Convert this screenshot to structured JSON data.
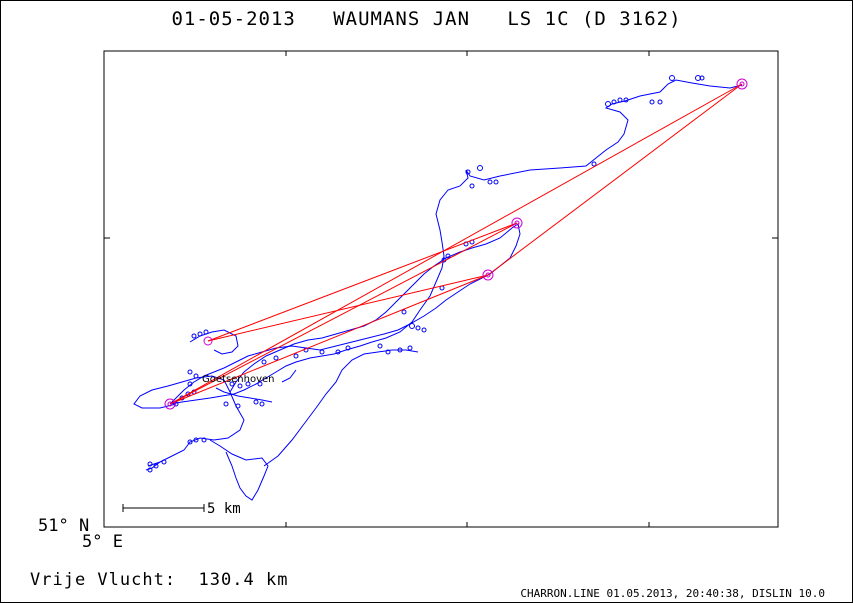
{
  "title": {
    "date": "01-05-2013",
    "owner": "WAUMANS JAN",
    "loft": "LS 1C (D 3162)"
  },
  "axes": {
    "lat_label": "51° N",
    "lon_label": "5° E"
  },
  "map": {
    "place_name": "Goetsenhoven",
    "scale_bar_label": "5 km",
    "track_color": "#0000ff",
    "leg_color": "#ff0000",
    "marker_color": "#cc00cc"
  },
  "flight": {
    "label": "Vrije Vlucht:",
    "distance": "130.4 km"
  },
  "footer": "CHARRON.LINE 01.05.2013, 20:40:38, DISLIN 10.0"
}
